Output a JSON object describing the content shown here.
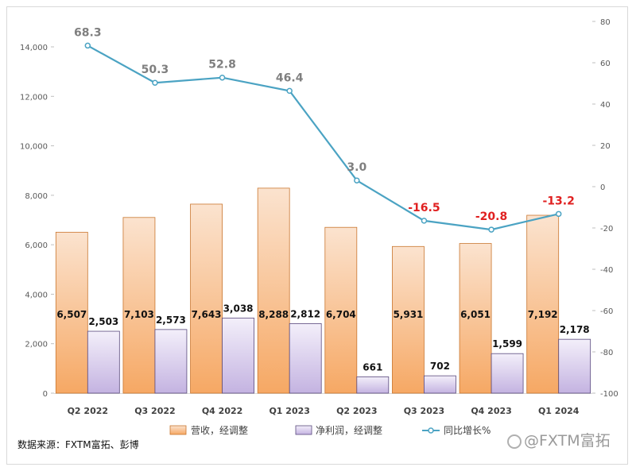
{
  "chart_data": {
    "type": "bar",
    "categories": [
      "Q2 2022",
      "Q3 2022",
      "Q4 2022",
      "Q1 2023",
      "Q2 2023",
      "Q3 2023",
      "Q4 2023",
      "Q1 2024"
    ],
    "series": [
      {
        "name": "营收，经调整",
        "axis": "left",
        "type": "bar",
        "values": [
          6507,
          7103,
          7643,
          8288,
          6704,
          5931,
          6051,
          7192
        ],
        "labels": [
          "6,507",
          "7,103",
          "7,643",
          "8,288",
          "6,704",
          "5,931",
          "6,051",
          "7,192"
        ]
      },
      {
        "name": "净利润，经调整",
        "axis": "left",
        "type": "bar",
        "values": [
          2503,
          2573,
          3038,
          2812,
          661,
          702,
          1599,
          2178
        ],
        "labels": [
          "2,503",
          "2,573",
          "3,038",
          "2,812",
          "661",
          "702",
          "1,599",
          "2,178"
        ]
      },
      {
        "name": "同比增长%",
        "axis": "right",
        "type": "line",
        "values": [
          68.3,
          50.3,
          52.8,
          46.4,
          3.0,
          -16.5,
          -20.8,
          -13.2
        ],
        "labels": [
          "68.3",
          "50.3",
          "52.8",
          "46.4",
          "3.0",
          "-16.5",
          "-20.8",
          "-13.2"
        ]
      }
    ],
    "y_left": {
      "lim": [
        0,
        14000
      ],
      "ticks": [
        0,
        2000,
        4000,
        6000,
        8000,
        10000,
        12000,
        14000
      ],
      "tick_labels": [
        "0",
        "2,000",
        "4,000",
        "6,000",
        "8,000",
        "10,000",
        "12,000",
        "14,000"
      ]
    },
    "y_right": {
      "lim": [
        -100,
        80
      ],
      "ticks": [
        -100,
        -80,
        -60,
        -40,
        -20,
        0,
        20,
        40,
        60,
        80
      ],
      "tick_labels": [
        "-100",
        "-80",
        "-60",
        "-40",
        "-20",
        "0",
        "20",
        "40",
        "60",
        "80"
      ]
    },
    "legend": [
      "营收，经调整",
      "净利润，经调整",
      "同比增长%"
    ],
    "legend_position": "bottom",
    "grid": false,
    "colors": {
      "revenue_top": "#fbe3cf",
      "revenue_bottom": "#f6a864",
      "revenue_edge": "#c9762f",
      "profit_top": "#f3effa",
      "profit_bottom": "#c4b3e1",
      "profit_edge": "#5a4a7d",
      "line": "#4ba3c3",
      "positive_label": "#7f7f7f",
      "negative_label": "#e02020"
    }
  },
  "source_note": "数据来源：FXTM富拓、彭博",
  "watermark": "@FXTM富拓"
}
